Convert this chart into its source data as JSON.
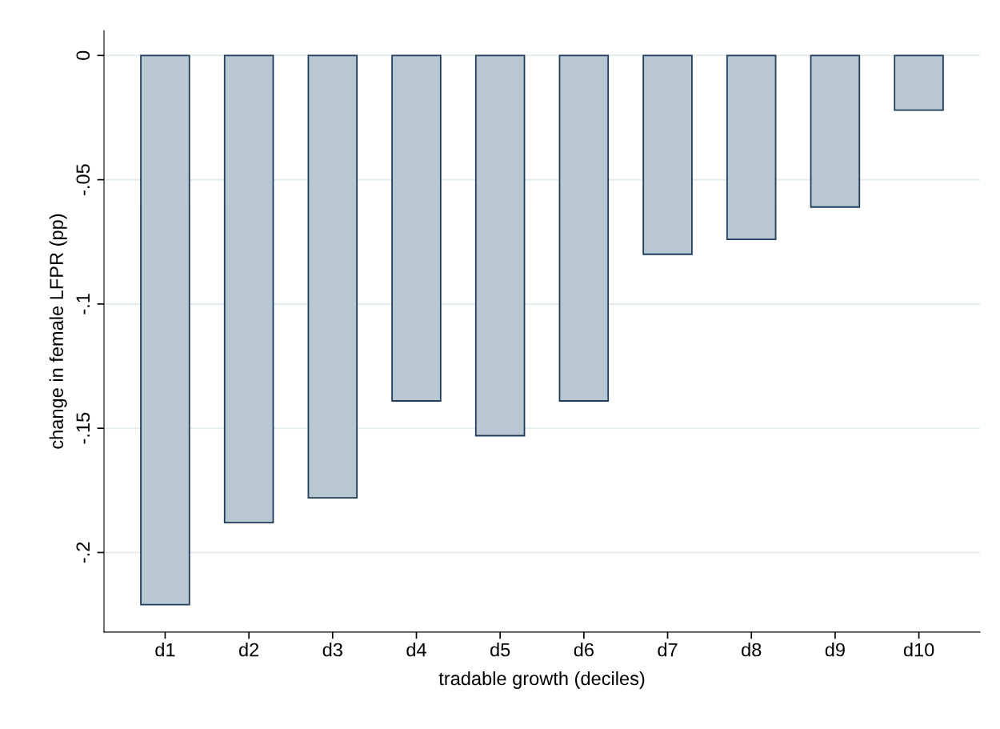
{
  "chart_data": {
    "type": "bar",
    "xlabel": "tradable growth (deciles)",
    "ylabel": "change in female LFPR (pp)",
    "categories": [
      "d1",
      "d2",
      "d3",
      "d4",
      "d5",
      "d6",
      "d7",
      "d8",
      "d9",
      "d10"
    ],
    "values": [
      -0.221,
      -0.188,
      -0.178,
      -0.139,
      -0.153,
      -0.139,
      -0.08,
      -0.074,
      -0.061,
      -0.022
    ],
    "color": "#b9c7d2",
    "ylim": [
      -0.232,
      0.01
    ],
    "yticks": [
      {
        "value": 0,
        "label": "0"
      },
      {
        "value": -0.05,
        "label": "-.05"
      },
      {
        "value": -0.1,
        "label": "-.1"
      },
      {
        "value": -0.15,
        "label": "-.15"
      },
      {
        "value": -0.2,
        "label": "-.2"
      }
    ],
    "grid": "y",
    "legend": false
  }
}
